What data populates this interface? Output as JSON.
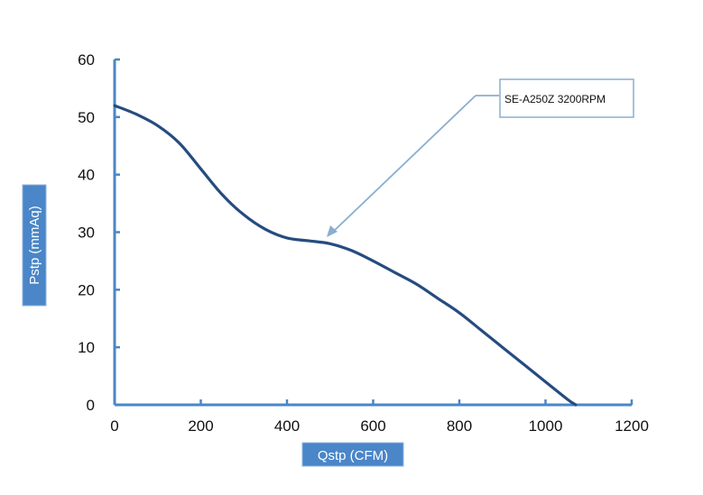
{
  "chart_data": {
    "type": "line",
    "title": "",
    "xlabel": "Qstp (CFM)",
    "ylabel": "Pstp (mmAq)",
    "xlim": [
      0,
      1200
    ],
    "ylim": [
      0,
      60
    ],
    "xticks": [
      0,
      200,
      400,
      600,
      800,
      1000,
      1200
    ],
    "yticks": [
      0,
      10,
      20,
      30,
      40,
      50,
      60
    ],
    "grid": false,
    "series": [
      {
        "name": "SE-A250Z 3200RPM",
        "color": "#254c7f",
        "x": [
          0,
          50,
          100,
          150,
          200,
          250,
          300,
          350,
          400,
          450,
          500,
          550,
          600,
          650,
          700,
          750,
          800,
          850,
          900,
          950,
          1000,
          1050,
          1070
        ],
        "y": [
          52,
          50.5,
          48.5,
          45.5,
          41,
          36.5,
          33,
          30.5,
          29,
          28.5,
          28,
          26.8,
          25,
          23,
          21,
          18.5,
          16,
          13,
          10,
          7,
          4,
          1,
          0
        ]
      }
    ],
    "annotations": [
      {
        "text": "SE-A250Z 3200RPM",
        "points_to": {
          "x": 490,
          "y": 29
        }
      }
    ]
  },
  "colors": {
    "axis": "#4a86c8",
    "label_box": "#4a86c8",
    "label_box_border": "#8fb4de",
    "line": "#254c7f",
    "callout_arrow": "#8aaed0",
    "callout_border": "#8aaed0"
  }
}
